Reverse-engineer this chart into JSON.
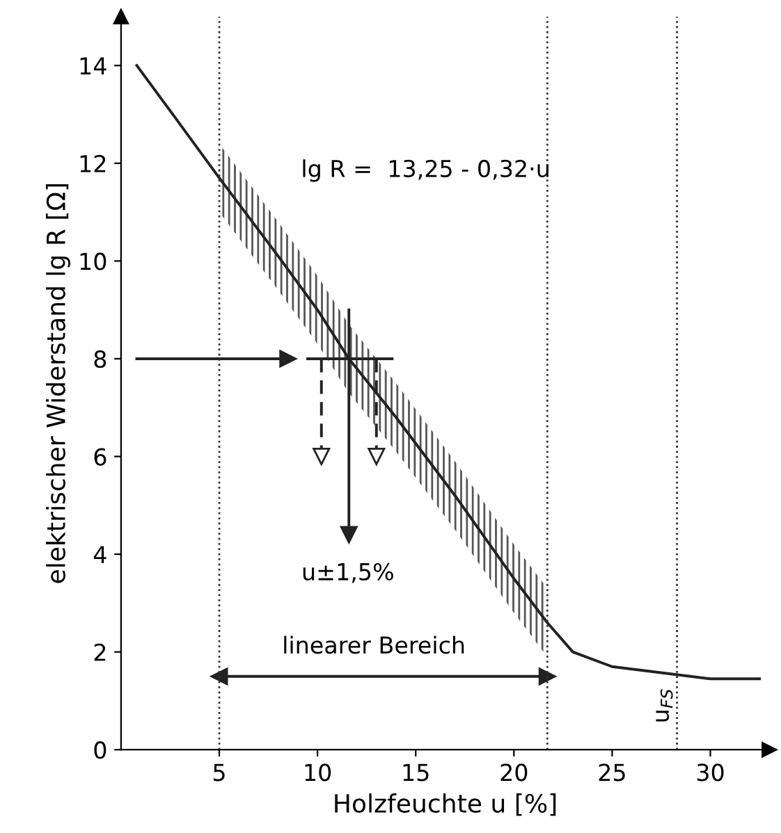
{
  "chart_data": {
    "type": "line",
    "xlabel": "Holzfeuchte u [%]",
    "ylabel": "elektrischer Widerstand lg R [Ω]",
    "xlim": [
      0,
      33
    ],
    "ylim": [
      0,
      15
    ],
    "xticks": [
      5,
      10,
      15,
      20,
      25,
      30
    ],
    "yticks": [
      0,
      2,
      4,
      6,
      8,
      10,
      12,
      14
    ],
    "grid": false,
    "legend": false,
    "series": [
      {
        "color": "#222222",
        "x": [
          0.8,
          3,
          5,
          8,
          10,
          11.6,
          14,
          17,
          20,
          21.7,
          23,
          25,
          28,
          30,
          32.5
        ],
        "values": [
          14.0,
          12.8,
          11.7,
          10.1,
          9.0,
          8.0,
          6.8,
          5.2,
          3.5,
          2.6,
          2.0,
          1.7,
          1.55,
          1.45,
          1.45
        ],
        "lower": [
          null,
          null,
          11.0,
          9.4,
          8.3,
          7.3,
          6.1,
          4.5,
          2.8,
          1.9,
          null,
          null,
          null,
          null,
          null
        ],
        "upper": [
          null,
          null,
          12.4,
          10.8,
          9.7,
          8.7,
          7.5,
          5.9,
          4.2,
          3.3,
          null,
          null,
          null,
          null,
          null
        ]
      },
      {
        "color": "#222222",
        "x": [
          0.8,
          8.5
        ],
        "values": [
          8,
          8
        ],
        "marker": "triangle"
      },
      {
        "color": "#222222",
        "x": [
          9.5,
          13.8
        ],
        "values": [
          8,
          8
        ]
      },
      {
        "color": "#222222",
        "x": [
          11.6,
          11.6
        ],
        "values": [
          9.0,
          4.4
        ],
        "marker": "triangle"
      },
      {
        "color": "#222222",
        "x": [
          10.2,
          10.2
        ],
        "values": [
          8,
          6.0
        ],
        "marker": "triangle",
        "line_style": "dashed"
      },
      {
        "color": "#222222",
        "x": [
          13,
          13
        ],
        "values": [
          8,
          6.0
        ],
        "marker": "triangle",
        "line_style": "dashed"
      },
      {
        "color": "#222222",
        "x": [
          5,
          13,
          21.7
        ],
        "values": [
          1.5,
          1.5,
          1.5
        ],
        "marker": "triangle"
      }
    ],
    "ref_lines": [
      {
        "axis": "x",
        "value": 5,
        "line_style": "dotted"
      },
      {
        "axis": "x",
        "value": 21.7,
        "line_style": "dotted"
      },
      {
        "axis": "x",
        "value": 28.3,
        "line_style": "dotted"
      }
    ],
    "annotations": [
      "lg R =  13,25 - 0,32·u",
      "u±1,5%",
      "linearer Bereich",
      "u$_{FS}$"
    ]
  }
}
